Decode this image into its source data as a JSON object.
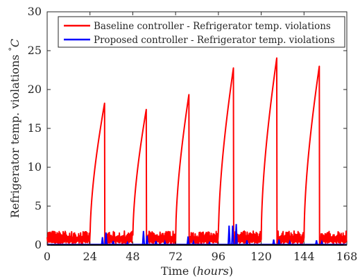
{
  "chart_data": {
    "type": "line",
    "title": "",
    "xlabel": "Time",
    "xlabel_unit": "hours",
    "ylabel": "Refrigerator temp. violations",
    "ylabel_unit": "C",
    "ylabel_degree": "°",
    "xlim": [
      0,
      168
    ],
    "ylim": [
      0,
      30
    ],
    "xticks": [
      0,
      24,
      48,
      72,
      96,
      120,
      144,
      168
    ],
    "yticks": [
      0,
      5,
      10,
      15,
      20,
      25,
      30
    ],
    "grid": false,
    "legend_position": "top-right",
    "series": [
      {
        "name": "Baseline controller - Refrigerator temp. violations",
        "color": "#ff0000",
        "peaks": [
          {
            "start": 24.0,
            "peak_x": 32.3,
            "peak_y": 18.4
          },
          {
            "start": 48.0,
            "peak_x": 55.6,
            "peak_y": 17.5
          },
          {
            "start": 72.0,
            "peak_x": 79.5,
            "peak_y": 19.4
          },
          {
            "start": 96.0,
            "peak_x": 104.5,
            "peak_y": 22.9
          },
          {
            "start": 120.0,
            "peak_x": 128.8,
            "peak_y": 24.2
          },
          {
            "start": 144.0,
            "peak_x": 152.7,
            "peak_y": 23.2
          }
        ],
        "baseline_max": 1.8
      },
      {
        "name": "Proposed controller - Refrigerator temp. violations",
        "color": "#0000ff",
        "spikes": [
          {
            "x": 31.0,
            "y": 1.0
          },
          {
            "x": 33.0,
            "y": 1.6
          },
          {
            "x": 37.0,
            "y": 0.5
          },
          {
            "x": 45.0,
            "y": 0.3
          },
          {
            "x": 54.0,
            "y": 1.8
          },
          {
            "x": 56.0,
            "y": 1.2
          },
          {
            "x": 61.0,
            "y": 0.5
          },
          {
            "x": 66.0,
            "y": 0.4
          },
          {
            "x": 79.0,
            "y": 1.1
          },
          {
            "x": 82.0,
            "y": 0.4
          },
          {
            "x": 91.0,
            "y": 0.3
          },
          {
            "x": 102.0,
            "y": 2.5
          },
          {
            "x": 104.0,
            "y": 2.5
          },
          {
            "x": 106.0,
            "y": 2.7
          },
          {
            "x": 112.0,
            "y": 0.6
          },
          {
            "x": 127.0,
            "y": 0.7
          },
          {
            "x": 130.0,
            "y": 0.7
          },
          {
            "x": 136.0,
            "y": 0.4
          },
          {
            "x": 151.0,
            "y": 0.6
          },
          {
            "x": 154.0,
            "y": 0.4
          }
        ]
      }
    ]
  }
}
